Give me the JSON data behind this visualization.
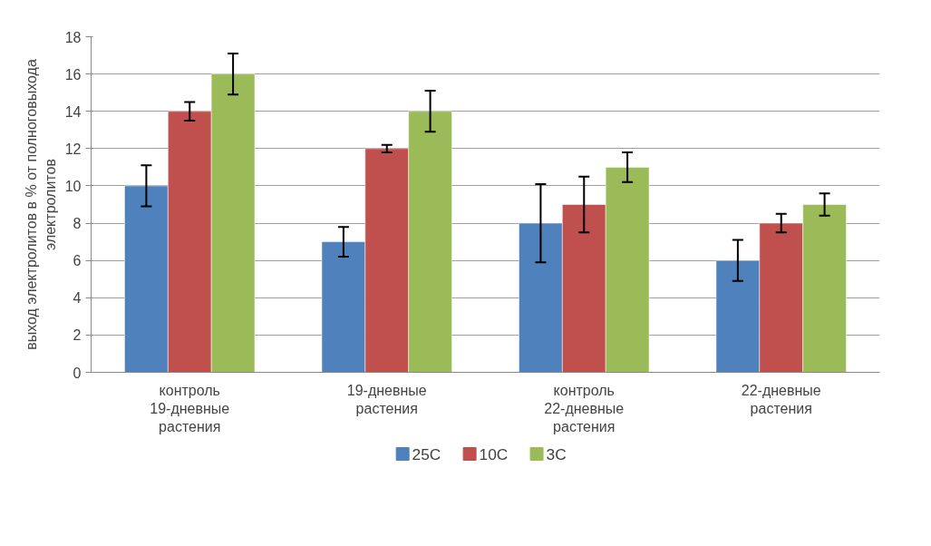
{
  "chart_data": {
    "type": "bar",
    "ylabel": "выход электролитов в % от полноговыхода электролитов",
    "categories": [
      "контроль 19-дневные растения",
      "19-дневные растения",
      "контроль 22-дневные растения",
      "22-дневные растения"
    ],
    "series": [
      {
        "name": "25C",
        "color": "#4f81bd",
        "values": [
          10,
          7,
          8,
          6
        ],
        "errors": [
          1.1,
          0.8,
          2.1,
          1.1
        ]
      },
      {
        "name": "10C",
        "color": "#c0504d",
        "values": [
          14,
          12,
          9,
          8
        ],
        "errors": [
          0.5,
          0.2,
          1.5,
          0.5
        ]
      },
      {
        "name": "3C",
        "color": "#9bbb59",
        "values": [
          16,
          14,
          11,
          9
        ],
        "errors": [
          1.1,
          1.1,
          0.8,
          0.6
        ]
      }
    ],
    "ylim": [
      0,
      18
    ],
    "yticks": [
      0,
      2,
      4,
      6,
      8,
      10,
      12,
      14,
      16,
      18
    ],
    "grid": "y",
    "legend": "bottom"
  }
}
